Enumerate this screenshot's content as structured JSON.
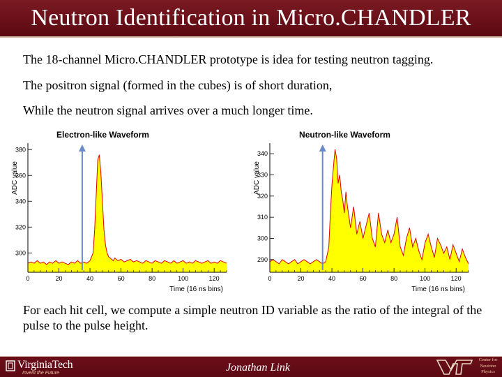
{
  "slide": {
    "title": "Neutron Identification in Micro.CHANDLER",
    "paragraphs": [
      "The 18-channel Micro.CHANDLER prototype is idea for testing neutron tagging.",
      "The positron signal (formed in the cubes) is of short duration,",
      "While the neutron signal arrives over a much longer time."
    ],
    "bottom_text": "For each hit cell, we compute a simple neutron ID variable as the ratio of the integral of the pulse to the pulse height."
  },
  "footer": {
    "university_name": "VirginiaTech",
    "tagline": "Invent the Future",
    "presenter": "Jonathan Link",
    "center_name": "Center for Neutrino Physics",
    "center_lines": [
      "Center for",
      "Neutrino",
      "Physics"
    ]
  },
  "colors": {
    "title_bar": "#6a1019",
    "footer": "#5c0914",
    "waveform_fill": "#ffff00",
    "waveform_line": "#e00000",
    "arrow": "#6a8ac8"
  },
  "chart_data": [
    {
      "type": "area",
      "title": "Electron-like Waveform",
      "xlabel": "Time (16 ns bins)",
      "ylabel": "ADC value",
      "xlim": [
        0,
        128
      ],
      "ylim": [
        285,
        385
      ],
      "x_ticks": [
        0,
        20,
        40,
        60,
        80,
        100,
        120
      ],
      "y_ticks": [
        300,
        320,
        340,
        360,
        380
      ],
      "arrow_x": 35,
      "series": [
        {
          "x": [
            0,
            2,
            4,
            6,
            8,
            10,
            12,
            14,
            16,
            18,
            20,
            22,
            24,
            26,
            28,
            30,
            32,
            34,
            36,
            38,
            40,
            42,
            43,
            44,
            45,
            46,
            47,
            48,
            49,
            50,
            51,
            52,
            53,
            54,
            55,
            56,
            58,
            60,
            62,
            64,
            66,
            68,
            70,
            72,
            74,
            76,
            78,
            80,
            82,
            84,
            86,
            88,
            90,
            92,
            94,
            96,
            98,
            100,
            102,
            104,
            106,
            108,
            110,
            112,
            114,
            116,
            118,
            120,
            122,
            124,
            126,
            128
          ],
          "values": [
            292,
            293,
            292,
            294,
            292,
            293,
            291,
            293,
            292,
            294,
            292,
            293,
            292,
            291,
            293,
            292,
            294,
            292,
            293,
            292,
            294,
            300,
            318,
            345,
            372,
            376,
            362,
            340,
            318,
            306,
            300,
            297,
            296,
            295,
            294,
            296,
            294,
            295,
            293,
            294,
            295,
            293,
            294,
            293,
            292,
            294,
            293,
            292,
            294,
            293,
            292,
            294,
            293,
            292,
            294,
            292,
            293,
            294,
            292,
            293,
            292,
            294,
            293,
            292,
            293,
            294,
            292,
            293,
            292,
            294,
            293,
            292
          ]
        }
      ]
    },
    {
      "type": "area",
      "title": "Neutron-like Waveform",
      "xlabel": "Time (16 ns bins)",
      "ylabel": "ADC value",
      "xlim": [
        0,
        128
      ],
      "ylim": [
        284,
        345
      ],
      "x_ticks": [
        0,
        20,
        40,
        60,
        80,
        100,
        120
      ],
      "y_ticks": [
        290,
        300,
        310,
        320,
        330,
        340
      ],
      "arrow_x": 34,
      "series": [
        {
          "x": [
            0,
            2,
            4,
            6,
            8,
            10,
            12,
            14,
            16,
            18,
            20,
            22,
            24,
            26,
            28,
            30,
            32,
            34,
            36,
            38,
            39,
            40,
            41,
            42,
            43,
            44,
            45,
            46,
            47,
            48,
            49,
            50,
            52,
            54,
            56,
            58,
            60,
            62,
            64,
            66,
            68,
            70,
            72,
            74,
            76,
            78,
            80,
            82,
            84,
            86,
            88,
            90,
            92,
            94,
            96,
            98,
            100,
            102,
            104,
            106,
            108,
            110,
            112,
            114,
            116,
            118,
            120,
            122,
            124,
            126,
            128
          ],
          "values": [
            289,
            290,
            289,
            288,
            290,
            289,
            288,
            289,
            290,
            288,
            289,
            290,
            289,
            288,
            289,
            290,
            289,
            288,
            289,
            296,
            312,
            325,
            334,
            342,
            338,
            326,
            330,
            322,
            318,
            312,
            322,
            315,
            305,
            315,
            302,
            308,
            300,
            306,
            312,
            300,
            296,
            312,
            302,
            298,
            304,
            298,
            302,
            310,
            296,
            292,
            300,
            305,
            296,
            300,
            294,
            290,
            298,
            302,
            296,
            291,
            300,
            297,
            293,
            296,
            290,
            297,
            293,
            289,
            295,
            291,
            288
          ]
        }
      ]
    }
  ]
}
